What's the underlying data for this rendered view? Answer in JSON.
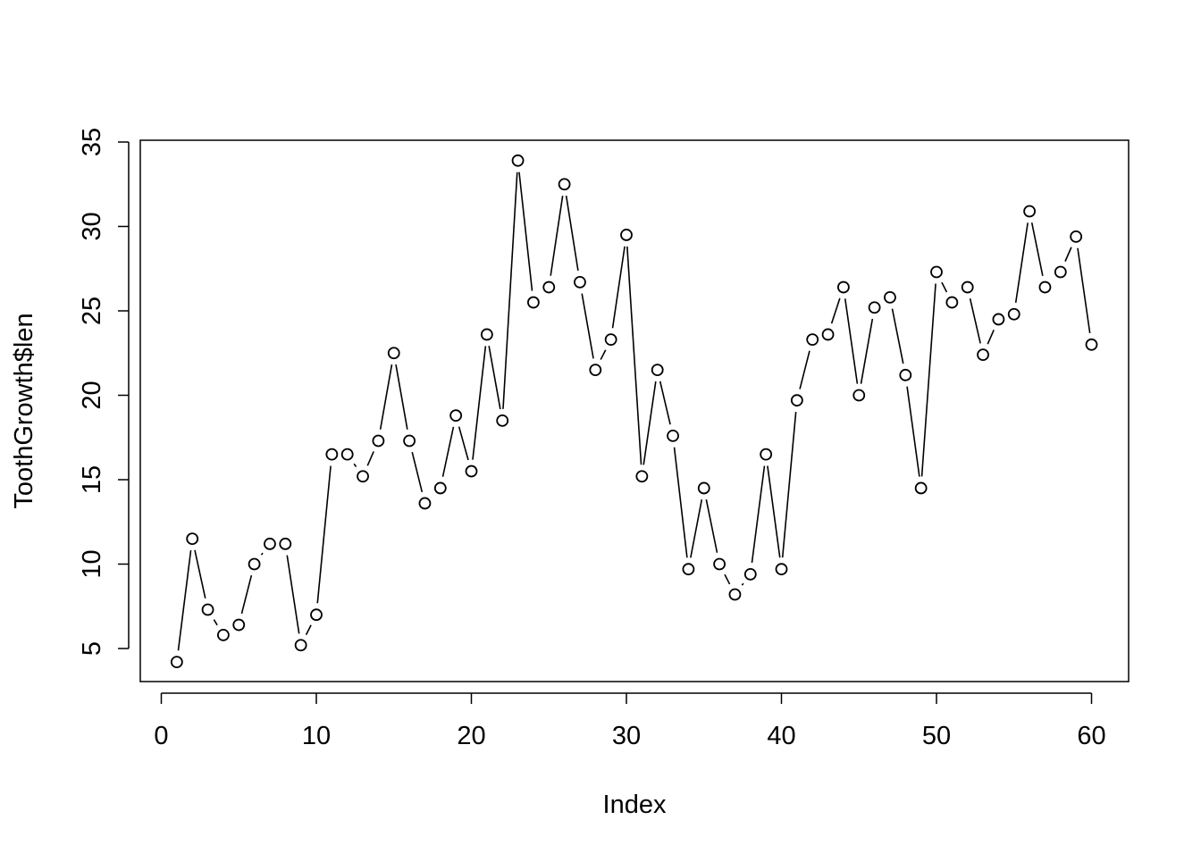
{
  "chart_data": {
    "type": "line",
    "title": "",
    "xlabel": "Index",
    "ylabel": "ToothGrowth$len",
    "xlim": [
      0,
      60
    ],
    "ylim": [
      5,
      35
    ],
    "x_ticks": [
      0,
      10,
      20,
      30,
      40,
      50,
      60
    ],
    "y_ticks": [
      5,
      10,
      15,
      20,
      25,
      30,
      35
    ],
    "grid": false,
    "legend": "none",
    "marker": "open-circle",
    "line_color": "#000000",
    "series": [
      {
        "x": [
          1,
          2,
          3,
          4,
          5,
          6,
          7,
          8,
          9,
          10,
          11,
          12,
          13,
          14,
          15,
          16,
          17,
          18,
          19,
          20,
          21,
          22,
          23,
          24,
          25,
          26,
          27,
          28,
          29,
          30,
          31,
          32,
          33,
          34,
          35,
          36,
          37,
          38,
          39,
          40,
          41,
          42,
          43,
          44,
          45,
          46,
          47,
          48,
          49,
          50,
          51,
          52,
          53,
          54,
          55,
          56,
          57,
          58,
          59,
          60
        ],
        "values": [
          4.2,
          11.5,
          7.3,
          5.8,
          6.4,
          10,
          11.2,
          11.2,
          5.2,
          7,
          16.5,
          16.5,
          15.2,
          17.3,
          22.5,
          17.3,
          13.6,
          14.5,
          18.8,
          15.5,
          23.6,
          18.5,
          33.9,
          25.5,
          26.4,
          32.5,
          26.7,
          21.5,
          23.3,
          29.5,
          15.2,
          21.5,
          17.6,
          9.7,
          14.5,
          10,
          8.2,
          9.4,
          16.5,
          9.7,
          19.7,
          23.3,
          23.6,
          26.4,
          20,
          25.2,
          25.8,
          21.2,
          14.5,
          27.3,
          25.5,
          26.4,
          22.4,
          24.5,
          24.8,
          30.9,
          26.4,
          27.3,
          29.4,
          23
        ]
      }
    ]
  }
}
